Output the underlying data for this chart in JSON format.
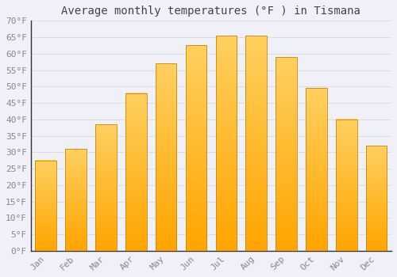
{
  "title": "Average monthly temperatures (°F ) in Tismana",
  "months": [
    "Jan",
    "Feb",
    "Mar",
    "Apr",
    "May",
    "Jun",
    "Jul",
    "Aug",
    "Sep",
    "Oct",
    "Nov",
    "Dec"
  ],
  "values": [
    27.5,
    31.0,
    38.5,
    48.0,
    57.0,
    62.5,
    65.5,
    65.5,
    59.0,
    49.5,
    40.0,
    32.0
  ],
  "bar_color_main": "#FFA500",
  "bar_color_light": "#FFD060",
  "bar_edge_color": "#CC8800",
  "background_color": "#F0F0F8",
  "plot_bg_color": "#F0F0F8",
  "grid_color": "#DDDDDD",
  "ylim": [
    0,
    70
  ],
  "yticks": [
    0,
    5,
    10,
    15,
    20,
    25,
    30,
    35,
    40,
    45,
    50,
    55,
    60,
    65,
    70
  ],
  "title_fontsize": 10,
  "tick_fontsize": 8,
  "tick_color": "#888888",
  "title_color": "#444444"
}
